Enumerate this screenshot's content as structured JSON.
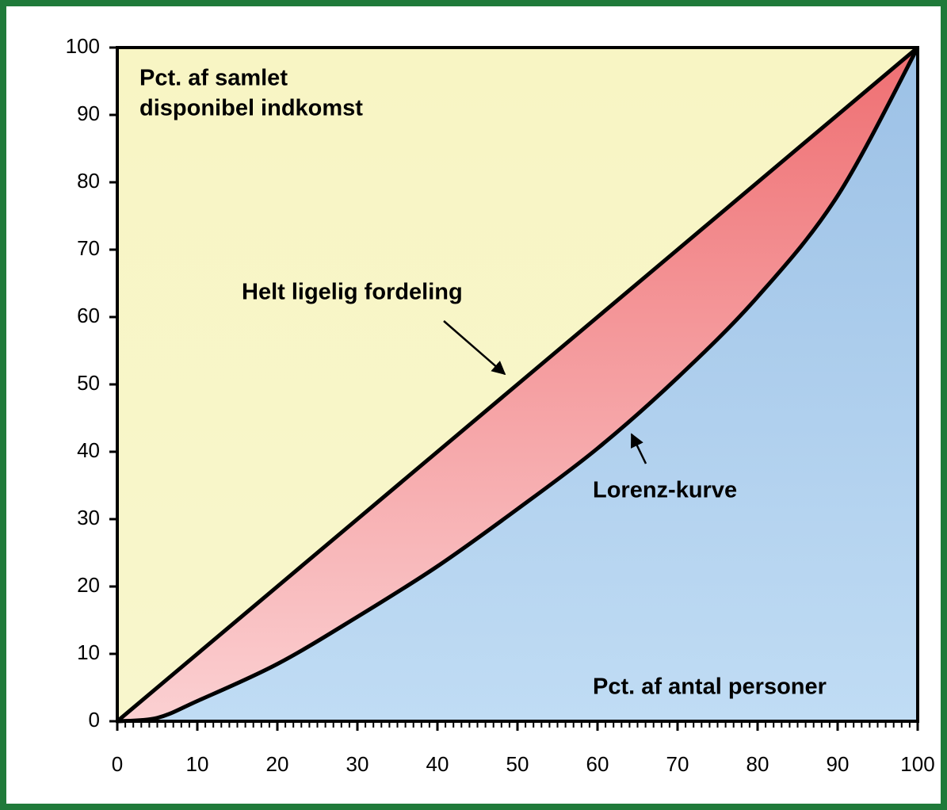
{
  "chart_data": {
    "type": "line",
    "ylabel": [
      "Pct. af samlet",
      "disponibel indkomst"
    ],
    "xlabel": "Pct. af antal personer",
    "x": [
      0,
      5,
      10,
      20,
      30,
      40,
      50,
      60,
      70,
      80,
      90,
      100
    ],
    "series": [
      {
        "name": "Helt ligelig fordeling",
        "color": "#000000",
        "values": [
          0,
          5,
          10,
          20,
          30,
          40,
          50,
          60,
          70,
          80,
          90,
          100
        ]
      },
      {
        "name": "Lorenz-kurve",
        "color": "#000000",
        "values": [
          0,
          0.5,
          3,
          8.5,
          15.5,
          23,
          31.5,
          40.5,
          51,
          63,
          78,
          100
        ]
      }
    ],
    "xlim": [
      0,
      100
    ],
    "ylim": [
      0,
      100
    ],
    "xticks": [
      0,
      10,
      20,
      30,
      40,
      50,
      60,
      70,
      80,
      90,
      100
    ],
    "yticks": [
      0,
      10,
      20,
      30,
      40,
      50,
      60,
      70,
      80,
      90,
      100
    ],
    "xminorticks": [
      0,
      1,
      2,
      3,
      4,
      5,
      6,
      7,
      8,
      9,
      10,
      11,
      12,
      13,
      14,
      15,
      16,
      17,
      18,
      19,
      20,
      21,
      22,
      23,
      24,
      25,
      26,
      27,
      28,
      29,
      30,
      31,
      32,
      33,
      34,
      35,
      36,
      37,
      38,
      39,
      40,
      41,
      42,
      43,
      44,
      45,
      46,
      47,
      48,
      49,
      50,
      51,
      52,
      53,
      54,
      55,
      56,
      57,
      58,
      59,
      60,
      61,
      62,
      63,
      64,
      65,
      66,
      67,
      68,
      69,
      70,
      71,
      72,
      73,
      74,
      75,
      76,
      77,
      78,
      79,
      80,
      81,
      82,
      83,
      84,
      85,
      86,
      87,
      88,
      89,
      90,
      91,
      92,
      93,
      94,
      95,
      96,
      97,
      98,
      99,
      100
    ]
  }
}
